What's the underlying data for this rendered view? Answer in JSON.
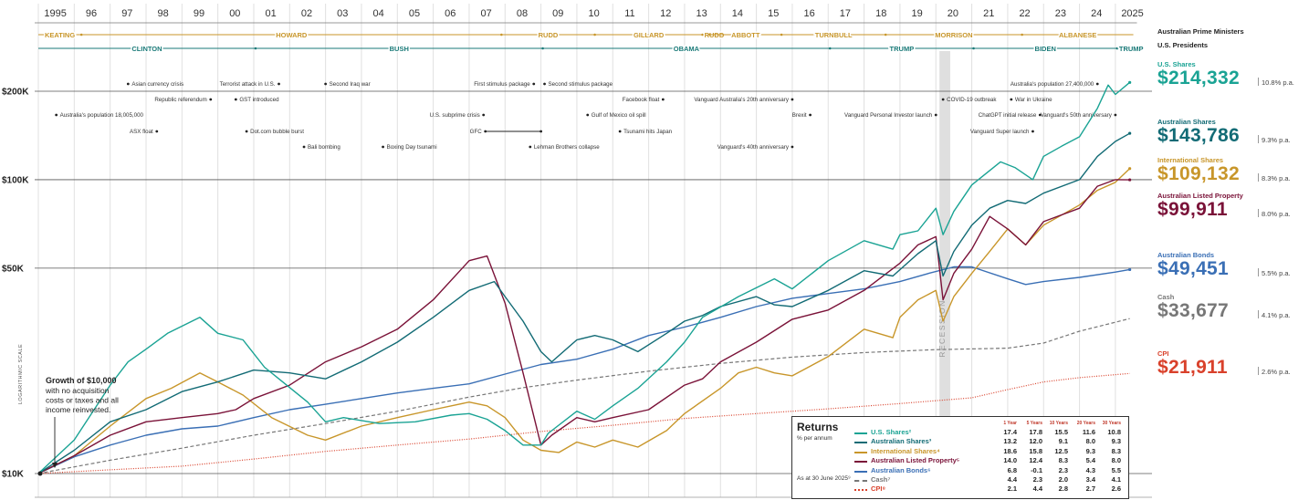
{
  "years": [
    "1995",
    "96",
    "97",
    "98",
    "99",
    "00",
    "01",
    "02",
    "03",
    "04",
    "05",
    "06",
    "07",
    "08",
    "09",
    "10",
    "11",
    "12",
    "13",
    "14",
    "15",
    "16",
    "17",
    "18",
    "19",
    "20",
    "21",
    "22",
    "23",
    "24",
    "2025"
  ],
  "prime_ministers": [
    {
      "name": "KEATING",
      "start": 1995.0,
      "end": 1996.2
    },
    {
      "name": "HOWARD",
      "start": 1996.2,
      "end": 2007.9
    },
    {
      "name": "RUDD",
      "start": 2007.9,
      "end": 2010.5
    },
    {
      "name": "GILLARD",
      "start": 2010.5,
      "end": 2013.5
    },
    {
      "name": "RUDD",
      "start": 2013.5,
      "end": 2013.7
    },
    {
      "name": "ABBOTT",
      "start": 2013.7,
      "end": 2015.7
    },
    {
      "name": "TURNBULL",
      "start": 2015.7,
      "end": 2018.6
    },
    {
      "name": "MORRISON",
      "start": 2018.6,
      "end": 2022.4
    },
    {
      "name": "ALBANESE",
      "start": 2022.4,
      "end": 2025.5
    }
  ],
  "presidents": [
    {
      "name": "CLINTON",
      "start": 1995.0,
      "end": 2001.05
    },
    {
      "name": "BUSH",
      "start": 2001.05,
      "end": 2009.05
    },
    {
      "name": "OBAMA",
      "start": 2009.05,
      "end": 2017.05
    },
    {
      "name": "TRUMP",
      "start": 2017.05,
      "end": 2021.05
    },
    {
      "name": "BIDEN",
      "start": 2021.05,
      "end": 2025.05
    },
    {
      "name": "TRUMP",
      "start": 2025.05,
      "end": 2025.5
    }
  ],
  "events": [
    {
      "text": "Asian currency crisis",
      "x": 1997.5,
      "row": 0,
      "side": "right"
    },
    {
      "text": "Terrorist attack in U.S.",
      "x": 2001.7,
      "row": 0,
      "side": "left"
    },
    {
      "text": "Second Iraq war",
      "x": 2003.0,
      "row": 0,
      "side": "right"
    },
    {
      "text": "First stimulus package",
      "x": 2008.8,
      "row": 0,
      "side": "left"
    },
    {
      "text": "Second stimulus package",
      "x": 2009.1,
      "row": 0,
      "side": "right"
    },
    {
      "text": "Australia's population 27,400,000",
      "x": 2024.5,
      "row": 0,
      "side": "left"
    },
    {
      "text": "Republic referendum",
      "x": 1999.8,
      "row": 1,
      "side": "left"
    },
    {
      "text": "GST introduced",
      "x": 2000.5,
      "row": 1,
      "side": "right"
    },
    {
      "text": "Facebook float",
      "x": 2012.4,
      "row": 1,
      "side": "left"
    },
    {
      "text": "Vanguard Australia's 20th anniversary",
      "x": 2016.0,
      "row": 1,
      "side": "left"
    },
    {
      "text": "COVID-19 outbreak",
      "x": 2020.2,
      "row": 1,
      "side": "right"
    },
    {
      "text": "War in Ukraine",
      "x": 2022.1,
      "row": 1,
      "side": "right"
    },
    {
      "text": "Australia's population 18,005,000",
      "x": 1995.5,
      "row": 2,
      "side": "right"
    },
    {
      "text": "U.S. subprime crisis",
      "x": 2007.4,
      "row": 2,
      "side": "left"
    },
    {
      "text": "Gulf of Mexico oil spill",
      "x": 2010.3,
      "row": 2,
      "side": "right"
    },
    {
      "text": "Brexit",
      "x": 2016.5,
      "row": 2,
      "side": "left"
    },
    {
      "text": "Vanguard Personal Investor launch",
      "x": 2020.0,
      "row": 2,
      "side": "left"
    },
    {
      "text": "ChatGPT initial release",
      "x": 2022.9,
      "row": 2,
      "side": "left"
    },
    {
      "text": "Vanguard's 50th anniversary",
      "x": 2025.0,
      "row": 2,
      "side": "left"
    },
    {
      "text": "ASX float",
      "x": 1998.3,
      "row": 3,
      "side": "left"
    },
    {
      "text": "Dot.com bubble burst",
      "x": 2000.8,
      "row": 3,
      "side": "right"
    },
    {
      "text": "Tsunami hits Japan",
      "x": 2011.2,
      "row": 3,
      "side": "right"
    },
    {
      "text": "Vanguard Super launch",
      "x": 2022.7,
      "row": 3,
      "side": "left"
    },
    {
      "text": "Bali bombing",
      "x": 2002.4,
      "row": 4,
      "side": "right"
    },
    {
      "text": "Boxing Day tsunami",
      "x": 2004.6,
      "row": 4,
      "side": "right"
    },
    {
      "text": "Lehman Brothers collapse",
      "x": 2008.7,
      "row": 4,
      "side": "right"
    },
    {
      "text": "Vanguard's 40th anniversary",
      "x": 2016.0,
      "row": 4,
      "side": "left"
    }
  ],
  "gfc": {
    "text": "GFC",
    "start": 2007.4,
    "end": 2009.0
  },
  "recession": {
    "label": "RECESSION",
    "start": 2020.1,
    "end": 2020.4
  },
  "growth_note": {
    "title": "Growth of $10,000",
    "lines": [
      "with no acquisition",
      "costs or taxes and all",
      "income reinvested."
    ]
  },
  "axis_label": "LOGARITHMIC SCALE",
  "side": {
    "pm_header": "Australian Prime Ministers",
    "pres_header": "U.S. Presidents"
  },
  "returns": {
    "title": "Returns",
    "subtitle": "% per annum",
    "as_at": "As at 30 June 2025⁹",
    "headers": [
      "1 Year",
      "5 Years",
      "10 Years",
      "20 Years",
      "30 Years"
    ],
    "rows": [
      {
        "name": "U.S. Shares²",
        "color": "#1aa394",
        "dash": "solid",
        "values": [
          "17.4",
          "17.8",
          "15.5",
          "11.6",
          "10.8"
        ]
      },
      {
        "name": "Australian Shares³",
        "color": "#126b75",
        "dash": "solid",
        "values": [
          "13.2",
          "12.0",
          "9.1",
          "8.0",
          "9.3"
        ]
      },
      {
        "name": "International Shares⁴",
        "color": "#c8962a",
        "dash": "solid",
        "values": [
          "18.6",
          "15.8",
          "12.5",
          "9.3",
          "8.3"
        ]
      },
      {
        "name": "Australian Listed Property⁵",
        "color": "#7a1238",
        "dash": "solid",
        "values": [
          "14.0",
          "12.4",
          "8.3",
          "5.4",
          "8.0"
        ]
      },
      {
        "name": "Australian Bonds⁶",
        "color": "#3a6fb5",
        "dash": "solid",
        "values": [
          "6.8",
          "-0.1",
          "2.3",
          "4.3",
          "5.5"
        ]
      },
      {
        "name": "Cash⁷",
        "color": "#777777",
        "dash": "dashed",
        "values": [
          "4.4",
          "2.3",
          "2.0",
          "3.4",
          "4.1"
        ]
      },
      {
        "name": "CPI⁸",
        "color": "#d9412b",
        "dash": "dotted",
        "values": [
          "2.1",
          "4.4",
          "2.8",
          "2.7",
          "2.6"
        ]
      }
    ]
  },
  "chart_data": {
    "type": "line",
    "title": "",
    "ylabel": "LOGARITHMIC SCALE",
    "xlim": [
      1995,
      2025.5
    ],
    "ylim": [
      10000,
      214332
    ],
    "y_scale": "log",
    "y_ticks": [
      {
        "v": 10000,
        "label": "$10K"
      },
      {
        "v": 50000,
        "label": "$50K"
      },
      {
        "v": 100000,
        "label": "$100K"
      },
      {
        "v": 200000,
        "label": "$200K"
      }
    ],
    "series": [
      {
        "name": "U.S. Shares",
        "color": "#1aa394",
        "dash": "solid",
        "final": "$214,332",
        "rate": "10.8% p.a.",
        "x": [
          1995.0,
          1996.0,
          1997.0,
          1997.5,
          1998.0,
          1998.6,
          1999.5,
          2000.0,
          2000.7,
          2001.3,
          2001.7,
          2002.5,
          2003.0,
          2003.5,
          2004.5,
          2005.5,
          2006.5,
          2007.0,
          2007.5,
          2008.0,
          2008.5,
          2009.0,
          2009.2,
          2010.0,
          2010.5,
          2011.0,
          2011.7,
          2012.5,
          2013.0,
          2013.5,
          2014.5,
          2015.5,
          2016.0,
          2017.0,
          2018.0,
          2018.8,
          2019.0,
          2019.5,
          2020.0,
          2020.2,
          2020.5,
          2021.0,
          2021.8,
          2022.2,
          2022.7,
          2023.0,
          2023.5,
          2024.0,
          2024.5,
          2024.8,
          2025.0,
          2025.4
        ],
        "y": [
          10000,
          13000,
          20000,
          24000,
          26500,
          30000,
          34000,
          30000,
          28500,
          23000,
          21000,
          17500,
          15000,
          15500,
          14800,
          15000,
          15800,
          16000,
          15300,
          14000,
          12500,
          12500,
          13700,
          16300,
          15300,
          17000,
          19500,
          24000,
          28000,
          34000,
          40000,
          46000,
          42500,
          53000,
          62000,
          58000,
          65000,
          67000,
          80000,
          65000,
          78000,
          96000,
          115000,
          110000,
          100000,
          120000,
          130000,
          140000,
          175000,
          210000,
          195000,
          214332
        ]
      },
      {
        "name": "Australian Shares",
        "color": "#126b75",
        "dash": "solid",
        "final": "$143,786",
        "rate": "9.3% p.a.",
        "x": [
          1995.0,
          1996.0,
          1997.0,
          1998.0,
          1999.0,
          2000.0,
          2001.0,
          2002.0,
          2003.0,
          2004.0,
          2005.0,
          2006.0,
          2007.0,
          2007.7,
          2008.0,
          2008.5,
          2009.0,
          2009.3,
          2010.0,
          2010.5,
          2011.0,
          2011.7,
          2012.5,
          2013.0,
          2013.5,
          2014.0,
          2015.0,
          2015.5,
          2016.0,
          2017.0,
          2018.0,
          2018.8,
          2019.5,
          2020.0,
          2020.2,
          2020.5,
          2021.0,
          2021.5,
          2022.0,
          2022.5,
          2023.0,
          2024.0,
          2024.5,
          2025.0,
          2025.4
        ],
        "y": [
          10000,
          12000,
          15000,
          16500,
          19000,
          20500,
          22500,
          22000,
          21000,
          24000,
          28000,
          34000,
          42000,
          45000,
          40000,
          33000,
          26000,
          24000,
          28500,
          29500,
          28500,
          26000,
          30000,
          33000,
          34500,
          37000,
          40000,
          37500,
          37000,
          42000,
          49000,
          47000,
          56000,
          62000,
          47000,
          57000,
          70000,
          80000,
          85000,
          83000,
          90000,
          100000,
          120000,
          135000,
          143786
        ]
      },
      {
        "name": "International Shares",
        "color": "#c8962a",
        "dash": "solid",
        "final": "$109,132",
        "rate": "8.3% p.a.",
        "x": [
          1995.0,
          1996.0,
          1997.0,
          1998.0,
          1998.7,
          1999.5,
          2000.0,
          2000.7,
          2001.5,
          2002.5,
          2003.0,
          2004.0,
          2005.0,
          2006.0,
          2007.0,
          2007.5,
          2008.0,
          2008.5,
          2009.0,
          2009.5,
          2010.0,
          2010.5,
          2011.0,
          2011.7,
          2012.5,
          2013.0,
          2014.0,
          2014.5,
          2015.0,
          2015.5,
          2016.0,
          2017.0,
          2018.0,
          2018.8,
          2019.0,
          2019.5,
          2020.0,
          2020.2,
          2020.5,
          2021.0,
          2021.5,
          2022.0,
          2022.5,
          2023.0,
          2024.0,
          2024.5,
          2025.0,
          2025.4
        ],
        "y": [
          10000,
          11500,
          14500,
          18000,
          19500,
          22000,
          20500,
          18500,
          15500,
          13500,
          13000,
          14500,
          15500,
          16500,
          17500,
          17000,
          15500,
          13000,
          12000,
          11800,
          12800,
          12300,
          13000,
          12300,
          14000,
          16000,
          19500,
          22000,
          23000,
          22000,
          21500,
          25000,
          31000,
          29000,
          34000,
          39000,
          42000,
          33000,
          40000,
          48000,
          57000,
          68000,
          60000,
          70000,
          82000,
          92000,
          98000,
          109132
        ]
      },
      {
        "name": "Australian Listed Property",
        "color": "#7a1238",
        "dash": "solid",
        "final": "$99,911",
        "rate": "8.0% p.a.",
        "x": [
          1995.0,
          1996.0,
          1997.0,
          1998.0,
          1999.0,
          2000.0,
          2000.5,
          2001.0,
          2002.0,
          2003.0,
          2004.0,
          2005.0,
          2006.0,
          2007.0,
          2007.5,
          2008.0,
          2008.5,
          2009.0,
          2009.3,
          2010.0,
          2010.5,
          2011.0,
          2012.0,
          2013.0,
          2013.5,
          2014.0,
          2015.0,
          2016.0,
          2017.0,
          2018.0,
          2019.0,
          2019.5,
          2020.0,
          2020.2,
          2020.5,
          2021.0,
          2021.5,
          2022.0,
          2022.5,
          2023.0,
          2024.0,
          2024.5,
          2025.0,
          2025.4
        ],
        "y": [
          10000,
          11500,
          13500,
          15000,
          15500,
          16000,
          16500,
          18000,
          20000,
          24000,
          27000,
          31000,
          39000,
          53000,
          55000,
          38000,
          22000,
          12500,
          13500,
          15500,
          15000,
          15500,
          16500,
          20000,
          21000,
          24000,
          28000,
          33500,
          36000,
          42000,
          52000,
          60000,
          64000,
          39000,
          48000,
          58000,
          75000,
          68000,
          60000,
          72000,
          80000,
          95000,
          100000,
          99911
        ]
      },
      {
        "name": "Australian Bonds",
        "color": "#3a6fb5",
        "dash": "solid",
        "final": "$49,451",
        "rate": "5.5% p.a.",
        "x": [
          1995.0,
          1996.0,
          1997.0,
          1998.0,
          1999.0,
          2000.0,
          2001.0,
          2002.0,
          2003.0,
          2004.0,
          2005.0,
          2006.0,
          2007.0,
          2008.0,
          2009.0,
          2010.0,
          2011.0,
          2012.0,
          2013.0,
          2014.0,
          2015.0,
          2016.0,
          2017.0,
          2018.0,
          2019.0,
          2019.8,
          2020.5,
          2021.0,
          2022.0,
          2022.5,
          2023.0,
          2024.0,
          2025.0,
          2025.4
        ],
        "y": [
          10000,
          11400,
          12500,
          13500,
          14200,
          14500,
          15500,
          16500,
          17200,
          18000,
          18800,
          19500,
          20200,
          21800,
          23500,
          24500,
          26500,
          29500,
          31500,
          34000,
          37000,
          39500,
          41000,
          42500,
          45000,
          48000,
          50500,
          50500,
          46000,
          44000,
          45000,
          46500,
          48500,
          49451
        ]
      },
      {
        "name": "Cash",
        "color": "#777777",
        "dash": "dashed",
        "final": "$33,677",
        "rate": "4.1% p.a.",
        "x": [
          1995.0,
          1997.0,
          1999.0,
          2001.0,
          2003.0,
          2005.0,
          2007.0,
          2008.5,
          2010.0,
          2012.0,
          2014.0,
          2016.0,
          2018.0,
          2020.0,
          2022.0,
          2023.0,
          2024.0,
          2025.4
        ],
        "y": [
          10000,
          11100,
          12200,
          13500,
          14800,
          16300,
          18200,
          19600,
          20800,
          22300,
          23700,
          24900,
          25800,
          26400,
          26700,
          27800,
          30500,
          33677
        ]
      },
      {
        "name": "CPI",
        "color": "#d9412b",
        "dash": "dotted",
        "final": "$21,911",
        "rate": "2.6% p.a.",
        "x": [
          1995.0,
          1997.0,
          1999.0,
          2001.0,
          2003.0,
          2005.0,
          2007.0,
          2009.0,
          2011.0,
          2013.0,
          2015.0,
          2017.0,
          2019.0,
          2021.0,
          2022.0,
          2023.0,
          2024.0,
          2025.4
        ],
        "y": [
          10000,
          10300,
          10600,
          11200,
          11900,
          12500,
          13100,
          13900,
          14600,
          15400,
          16000,
          16600,
          17300,
          18100,
          19300,
          20500,
          21200,
          21911
        ]
      }
    ]
  }
}
